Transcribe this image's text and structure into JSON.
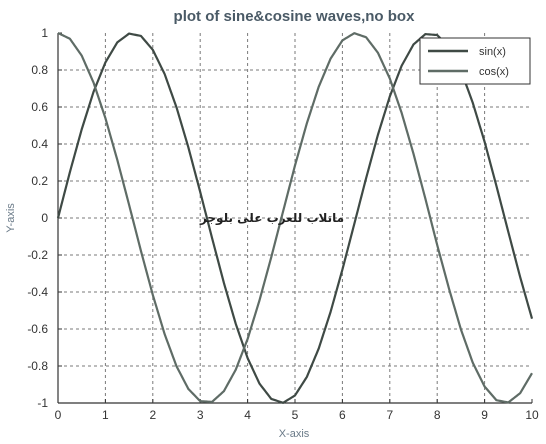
{
  "chart_data": {
    "type": "line",
    "title": "plot of sine&cosine waves,no box",
    "xlabel": "X-axis",
    "ylabel": "Y-axis",
    "xlim": [
      0,
      10
    ],
    "ylim": [
      -1,
      1
    ],
    "xticks": [
      "0",
      "1",
      "2",
      "3",
      "4",
      "5",
      "6",
      "7",
      "8",
      "9",
      "10"
    ],
    "yticks": [
      "1",
      "0.8",
      "0.6",
      "0.4",
      "0.2",
      "0",
      "-0.2",
      "-0.4",
      "-0.6",
      "-0.8",
      "-1"
    ],
    "grid": true,
    "legend_position": "top-right",
    "annotation": "ماتلاب للعرب على بلوجر",
    "series": [
      {
        "name": "sin(x)",
        "color": "#3f4a45",
        "x": [
          0,
          0.25,
          0.5,
          0.75,
          1,
          1.25,
          1.5,
          1.75,
          2,
          2.25,
          2.5,
          2.75,
          3,
          3.25,
          3.5,
          3.75,
          4,
          4.25,
          4.5,
          4.75,
          5,
          5.25,
          5.5,
          5.75,
          6,
          6.25,
          6.5,
          6.75,
          7,
          7.25,
          7.5,
          7.75,
          8,
          8.25,
          8.5,
          8.75,
          9,
          9.25,
          9.5,
          9.75,
          10
        ],
        "values": [
          0,
          0.247,
          0.479,
          0.682,
          0.841,
          0.949,
          0.997,
          0.984,
          0.909,
          0.778,
          0.598,
          0.382,
          0.141,
          -0.108,
          -0.351,
          -0.572,
          -0.757,
          -0.895,
          -0.978,
          -0.999,
          -0.959,
          -0.859,
          -0.706,
          -0.508,
          -0.279,
          -0.033,
          0.215,
          0.45,
          0.657,
          0.823,
          0.938,
          0.994,
          0.989,
          0.925,
          0.798,
          0.623,
          0.412,
          0.173,
          -0.075,
          -0.319,
          -0.544
        ]
      },
      {
        "name": "cos(x)",
        "color": "#5f6c66",
        "x": [
          0,
          0.25,
          0.5,
          0.75,
          1,
          1.25,
          1.5,
          1.75,
          2,
          2.25,
          2.5,
          2.75,
          3,
          3.25,
          3.5,
          3.75,
          4,
          4.25,
          4.5,
          4.75,
          5,
          5.25,
          5.5,
          5.75,
          6,
          6.25,
          6.5,
          6.75,
          7,
          7.25,
          7.5,
          7.75,
          8,
          8.25,
          8.5,
          8.75,
          9,
          9.25,
          9.5,
          9.75,
          10
        ],
        "values": [
          1,
          0.969,
          0.878,
          0.732,
          0.54,
          0.315,
          0.071,
          -0.178,
          -0.416,
          -0.628,
          -0.801,
          -0.924,
          -0.99,
          -0.994,
          -0.936,
          -0.82,
          -0.654,
          -0.446,
          -0.211,
          0.037,
          0.284,
          0.512,
          0.709,
          0.861,
          0.96,
          0.999,
          0.977,
          0.893,
          0.754,
          0.568,
          0.347,
          0.105,
          -0.146,
          -0.383,
          -0.602,
          -0.782,
          -0.911,
          -0.985,
          -0.997,
          -0.947,
          -0.839
        ]
      }
    ]
  }
}
